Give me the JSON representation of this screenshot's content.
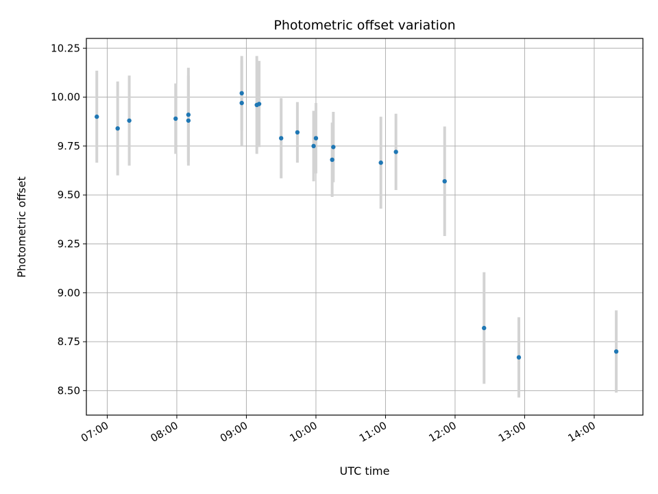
{
  "chart_data": {
    "type": "scatter",
    "title": "Photometric offset variation",
    "xlabel": "UTC time",
    "ylabel": "Photometric offset",
    "x_type": "time",
    "xlim": [
      "06:42",
      "14:42"
    ],
    "ylim": [
      8.375,
      10.3
    ],
    "x_ticks": [
      "07:00",
      "08:00",
      "09:00",
      "10:00",
      "11:00",
      "12:00",
      "13:00",
      "14:00"
    ],
    "y_ticks": [
      "8.50",
      "8.75",
      "9.00",
      "9.25",
      "9.50",
      "9.75",
      "10.00",
      "10.25"
    ],
    "grid": true,
    "legend": "none",
    "colors": {
      "point": "#1f77b4",
      "errorbar": "#d3d3d3",
      "grid": "#b0b0b0"
    },
    "series": [
      {
        "points": [
          {
            "x": "06:51",
            "y": 9.9,
            "err": 0.235
          },
          {
            "x": "07:09",
            "y": 9.84,
            "err": 0.24
          },
          {
            "x": "07:19",
            "y": 9.88,
            "err": 0.23
          },
          {
            "x": "07:59",
            "y": 9.89,
            "err": 0.18
          },
          {
            "x": "08:10",
            "y": 9.91,
            "err": 0.24
          },
          {
            "x": "08:10",
            "y": 9.88,
            "err": 0.23
          },
          {
            "x": "08:56",
            "y": 10.02,
            "err": 0.19
          },
          {
            "x": "08:56",
            "y": 9.97,
            "err": 0.22
          },
          {
            "x": "09:09",
            "y": 9.96,
            "err": 0.25
          },
          {
            "x": "09:11",
            "y": 9.965,
            "err": 0.22
          },
          {
            "x": "09:30",
            "y": 9.79,
            "err": 0.205
          },
          {
            "x": "09:44",
            "y": 9.82,
            "err": 0.155
          },
          {
            "x": "09:58",
            "y": 9.75,
            "err": 0.18
          },
          {
            "x": "10:00",
            "y": 9.79,
            "err": 0.18
          },
          {
            "x": "10:14",
            "y": 9.68,
            "err": 0.19
          },
          {
            "x": "10:15",
            "y": 9.745,
            "err": 0.18
          },
          {
            "x": "10:56",
            "y": 9.665,
            "err": 0.235
          },
          {
            "x": "11:09",
            "y": 9.72,
            "err": 0.195
          },
          {
            "x": "11:51",
            "y": 9.57,
            "err": 0.28
          },
          {
            "x": "12:25",
            "y": 8.82,
            "err": 0.285
          },
          {
            "x": "12:55",
            "y": 8.67,
            "err": 0.205
          },
          {
            "x": "14:19",
            "y": 8.7,
            "err": 0.21
          }
        ]
      }
    ]
  }
}
